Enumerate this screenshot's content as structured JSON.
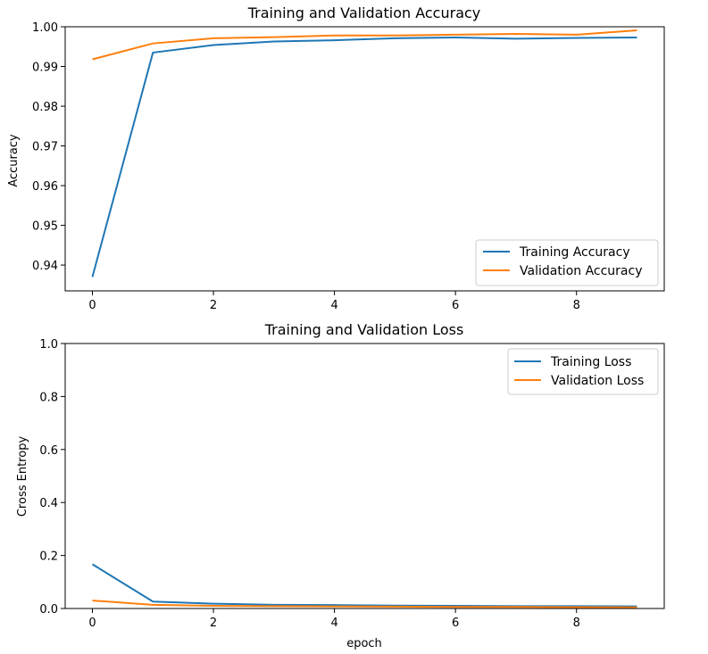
{
  "colors": {
    "training": "#1f77b4",
    "validation": "#ff7f0e"
  },
  "chart_data": [
    {
      "type": "line",
      "title": "Training and Validation Accuracy",
      "xlabel": "",
      "ylabel": "Accuracy",
      "x": [
        0,
        1,
        2,
        3,
        4,
        5,
        6,
        7,
        8,
        9
      ],
      "xlim": [
        -0.45,
        9.45
      ],
      "ylim": [
        0.9335,
        1.0
      ],
      "xticks": [
        0,
        2,
        4,
        6,
        8
      ],
      "xtick_labels": [
        "0",
        "2",
        "4",
        "6",
        "8"
      ],
      "yticks": [
        0.94,
        0.95,
        0.96,
        0.97,
        0.98,
        0.99,
        1.0
      ],
      "ytick_labels": [
        "0.94",
        "0.95",
        "0.96",
        "0.97",
        "0.98",
        "0.99",
        "1.00"
      ],
      "grid": false,
      "legend_position": "lower-right",
      "series": [
        {
          "name": "Training Accuracy",
          "color_key": "training",
          "values": [
            0.937,
            0.9935,
            0.9954,
            0.9963,
            0.9966,
            0.9971,
            0.9973,
            0.997,
            0.9972,
            0.9973
          ]
        },
        {
          "name": "Validation Accuracy",
          "color_key": "validation",
          "values": [
            0.9918,
            0.9958,
            0.9971,
            0.9974,
            0.9978,
            0.9978,
            0.998,
            0.9982,
            0.998,
            0.9991
          ]
        }
      ]
    },
    {
      "type": "line",
      "title": "Training and Validation Loss",
      "xlabel": "epoch",
      "ylabel": "Cross Entropy",
      "x": [
        0,
        1,
        2,
        3,
        4,
        5,
        6,
        7,
        8,
        9
      ],
      "xlim": [
        -0.45,
        9.45
      ],
      "ylim": [
        0.0,
        1.0
      ],
      "xticks": [
        0,
        2,
        4,
        6,
        8
      ],
      "xtick_labels": [
        "0",
        "2",
        "4",
        "6",
        "8"
      ],
      "yticks": [
        0.0,
        0.2,
        0.4,
        0.6,
        0.8,
        1.0
      ],
      "ytick_labels": [
        "0.0",
        "0.2",
        "0.4",
        "0.6",
        "0.8",
        "1.0"
      ],
      "grid": false,
      "legend_position": "upper-right",
      "series": [
        {
          "name": "Training Loss",
          "color_key": "training",
          "values": [
            0.167,
            0.026,
            0.018,
            0.014,
            0.013,
            0.011,
            0.01,
            0.009,
            0.009,
            0.008
          ]
        },
        {
          "name": "Validation Loss",
          "color_key": "validation",
          "values": [
            0.03,
            0.014,
            0.01,
            0.009,
            0.008,
            0.007,
            0.006,
            0.006,
            0.005,
            0.004
          ]
        }
      ]
    }
  ]
}
